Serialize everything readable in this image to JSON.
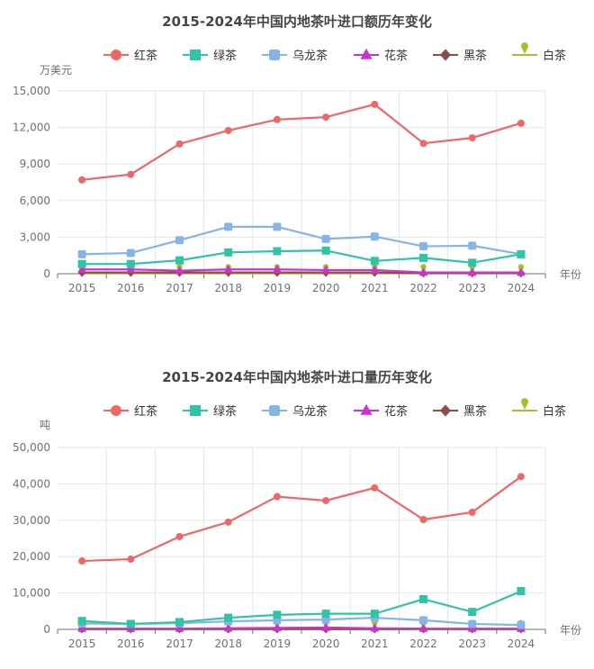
{
  "chart_data": [
    {
      "type": "line",
      "title": "2015-2024年中国内地茶叶进口额历年变化",
      "ylabel": "万美元",
      "xlabel": "年份",
      "ylim": [
        0,
        15000
      ],
      "yticks": [
        0,
        3000,
        6000,
        9000,
        12000,
        15000
      ],
      "ytick_labels": [
        "0",
        "3,000",
        "6,000",
        "9,000",
        "12,000",
        "15,000"
      ],
      "grid": true,
      "legend_position": "top",
      "categories": [
        "2015",
        "2016",
        "2017",
        "2018",
        "2019",
        "2020",
        "2021",
        "2022",
        "2023",
        "2024"
      ],
      "series": [
        {
          "name": "红茶",
          "color": "#ee6666",
          "marker": "circle",
          "values": [
            7700,
            8150,
            10650,
            11750,
            12650,
            12850,
            13900,
            10700,
            11150,
            12350
          ]
        },
        {
          "name": "绿茶",
          "color": "#2ec4a4",
          "marker": "square",
          "values": [
            800,
            800,
            1100,
            1750,
            1850,
            1900,
            1050,
            1300,
            900,
            1600
          ]
        },
        {
          "name": "乌龙茶",
          "color": "#86b4e6",
          "marker": "rounded-square",
          "values": [
            1600,
            1700,
            2750,
            3850,
            3850,
            2850,
            3050,
            2250,
            2300,
            1600
          ]
        },
        {
          "name": "花茶",
          "color": "#cc33cc",
          "marker": "triangle",
          "values": [
            350,
            350,
            250,
            350,
            350,
            300,
            300,
            100,
            100,
            100
          ]
        },
        {
          "name": "黑茶",
          "color": "#8b4c4c",
          "marker": "diamond",
          "values": [
            100,
            100,
            100,
            100,
            100,
            100,
            100,
            50,
            50,
            50
          ]
        },
        {
          "name": "白茶",
          "color": "#a8c030",
          "marker": "pin",
          "values": [
            30,
            30,
            30,
            30,
            30,
            30,
            30,
            30,
            30,
            30
          ]
        }
      ]
    },
    {
      "type": "line",
      "title": "2015-2024年中国内地茶叶进口量历年变化",
      "ylabel": "吨",
      "xlabel": "年份",
      "ylim": [
        0,
        50000
      ],
      "yticks": [
        0,
        10000,
        20000,
        30000,
        40000,
        50000
      ],
      "ytick_labels": [
        "0",
        "10,000",
        "20,000",
        "30,000",
        "40,000",
        "50,000"
      ],
      "grid": true,
      "legend_position": "top",
      "categories": [
        "2015",
        "2016",
        "2017",
        "2018",
        "2019",
        "2020",
        "2021",
        "2022",
        "2023",
        "2024"
      ],
      "series": [
        {
          "name": "红茶",
          "color": "#ee6666",
          "marker": "circle",
          "values": [
            18800,
            19300,
            25500,
            29500,
            36500,
            35400,
            38900,
            30200,
            32200,
            42000
          ]
        },
        {
          "name": "绿茶",
          "color": "#2ec4a4",
          "marker": "square",
          "values": [
            2300,
            1500,
            2000,
            3200,
            4000,
            4300,
            4300,
            8300,
            4800,
            10500
          ]
        },
        {
          "name": "乌龙茶",
          "color": "#86b4e6",
          "marker": "rounded-square",
          "values": [
            1600,
            1500,
            1700,
            2200,
            2500,
            2700,
            3200,
            2500,
            1500,
            1200
          ]
        },
        {
          "name": "花茶",
          "color": "#cc33cc",
          "marker": "triangle",
          "values": [
            200,
            200,
            200,
            300,
            400,
            500,
            300,
            200,
            200,
            200
          ]
        },
        {
          "name": "黑茶",
          "color": "#8b4c4c",
          "marker": "diamond",
          "values": [
            100,
            100,
            100,
            100,
            100,
            100,
            100,
            100,
            100,
            100
          ]
        },
        {
          "name": "白茶",
          "color": "#a8c030",
          "marker": "pin",
          "values": [
            50,
            50,
            50,
            50,
            50,
            50,
            50,
            50,
            50,
            50
          ]
        }
      ]
    }
  ]
}
